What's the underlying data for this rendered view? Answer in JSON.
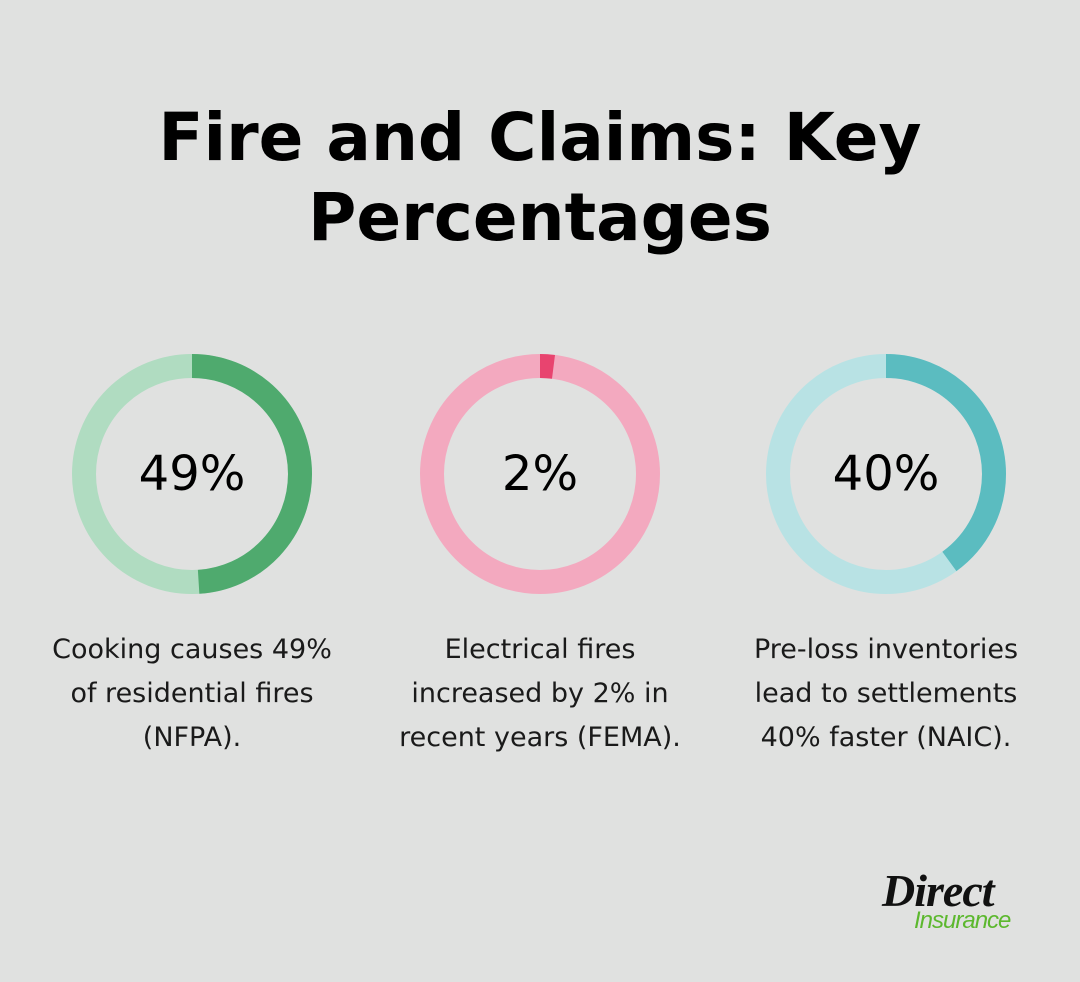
{
  "title": "Fire and Claims: Key Percentages",
  "title_lines": [
    "Fire and Claims: Key",
    "Percentages"
  ],
  "stats": [
    {
      "value": "49%",
      "percent": 49,
      "caption": "Cooking causes 49% of residential fires (NFPA).",
      "caption_lines": [
        "Cooking causes 49%",
        "of residential fires",
        "(NFPA)."
      ],
      "color": "#4faa6e",
      "track_color": "#b0dcc1"
    },
    {
      "value": "2%",
      "percent": 2,
      "caption": "Electrical fires increased by 2% in recent years (FEMA).",
      "caption_lines": [
        "Electrical fires",
        "increased by 2% in",
        "recent years (FEMA)."
      ],
      "color": "#e8446f",
      "track_color": "#f3a9bf"
    },
    {
      "value": "40%",
      "percent": 40,
      "caption": "Pre-loss inventories lead to settlements 40% faster (NAIC).",
      "caption_lines": [
        "Pre-loss inventories",
        "lead to settlements",
        "40% faster (NAIC)."
      ],
      "color": "#5bbcc0",
      "track_color": "#b8e2e4"
    }
  ],
  "logo": {
    "line1": "Direct",
    "line2": "Insurance"
  },
  "chart_data": {
    "type": "pie",
    "subtype": "donut-gauges",
    "title": "Fire and Claims: Key Percentages",
    "categories": [
      "Cooking share of residential fires (NFPA)",
      "Electrical fires increase (FEMA)",
      "Faster settlements with pre-loss inventories (NAIC)"
    ],
    "values": [
      49,
      2,
      40
    ],
    "unit": "%",
    "legend": "none"
  }
}
